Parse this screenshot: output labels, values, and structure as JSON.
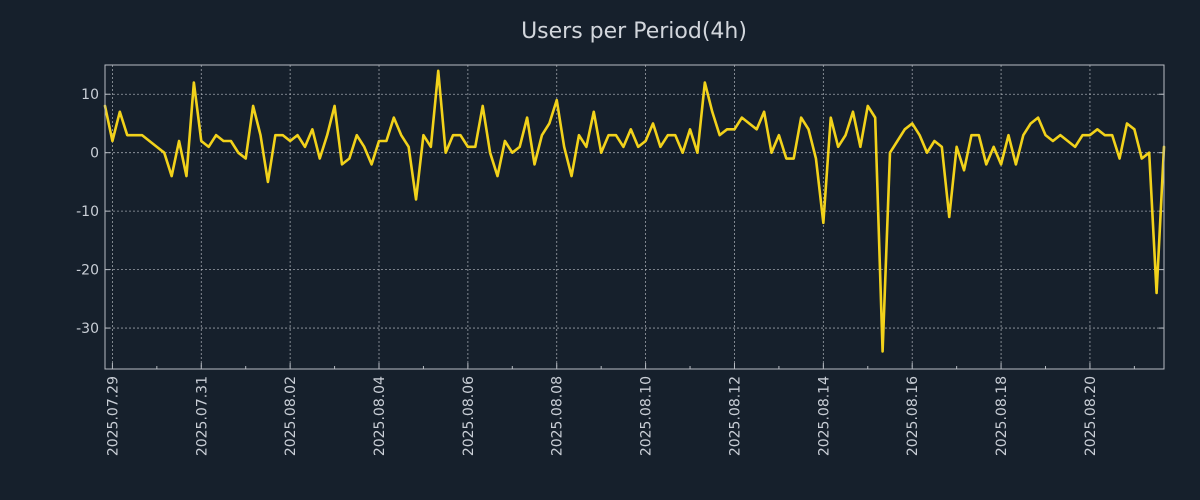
{
  "chart_data": {
    "type": "line",
    "title": "Users per Period(4h)",
    "xlabel": "",
    "ylabel": "",
    "ylim": [
      -37,
      15
    ],
    "yticks": [
      10,
      0,
      -10,
      -20,
      -30
    ],
    "ytick_labels": [
      "10",
      "0",
      "-10",
      "-20",
      "-30"
    ],
    "xticks": [
      "2025.07.29",
      "2025.07.31",
      "2025.08.02",
      "2025.08.04",
      "2025.08.06",
      "2025.08.08",
      "2025.08.10",
      "2025.08.12",
      "2025.08.14",
      "2025.08.16",
      "2025.08.18",
      "2025.08.20"
    ],
    "x_start": "2025.07.28 20:00",
    "x_step_hours": 4,
    "grid": true,
    "series": [
      {
        "name": "Users",
        "color": "#f2d21b",
        "values": [
          8,
          2,
          7,
          3,
          3,
          3,
          2,
          1,
          0,
          -4,
          2,
          -4,
          12,
          2,
          1,
          3,
          2,
          2,
          0,
          -1,
          8,
          3,
          -5,
          3,
          3,
          2,
          3,
          1,
          4,
          -1,
          3,
          8,
          -2,
          -1,
          3,
          1,
          -2,
          2,
          2,
          6,
          3,
          1,
          -8,
          3,
          1,
          14,
          0,
          3,
          3,
          1,
          1,
          8,
          0,
          -4,
          2,
          0,
          1,
          6,
          -2,
          3,
          5,
          9,
          1,
          -4,
          3,
          1,
          7,
          0,
          3,
          3,
          1,
          4,
          1,
          2,
          5,
          1,
          3,
          3,
          0,
          4,
          0,
          12,
          7,
          3,
          4,
          4,
          6,
          5,
          4,
          7,
          0,
          3,
          -1,
          -1,
          6,
          4,
          -1,
          -12,
          6,
          1,
          3,
          7,
          1,
          8,
          6,
          -34,
          0,
          2,
          4,
          5,
          3,
          0,
          2,
          1,
          -11,
          1,
          -3,
          3,
          3,
          -2,
          1,
          -2,
          3,
          -2,
          3,
          5,
          6,
          3,
          2,
          3,
          2,
          1,
          3,
          3,
          4,
          3,
          3,
          -1,
          5,
          4,
          -1,
          0,
          -24,
          1
        ]
      }
    ]
  }
}
